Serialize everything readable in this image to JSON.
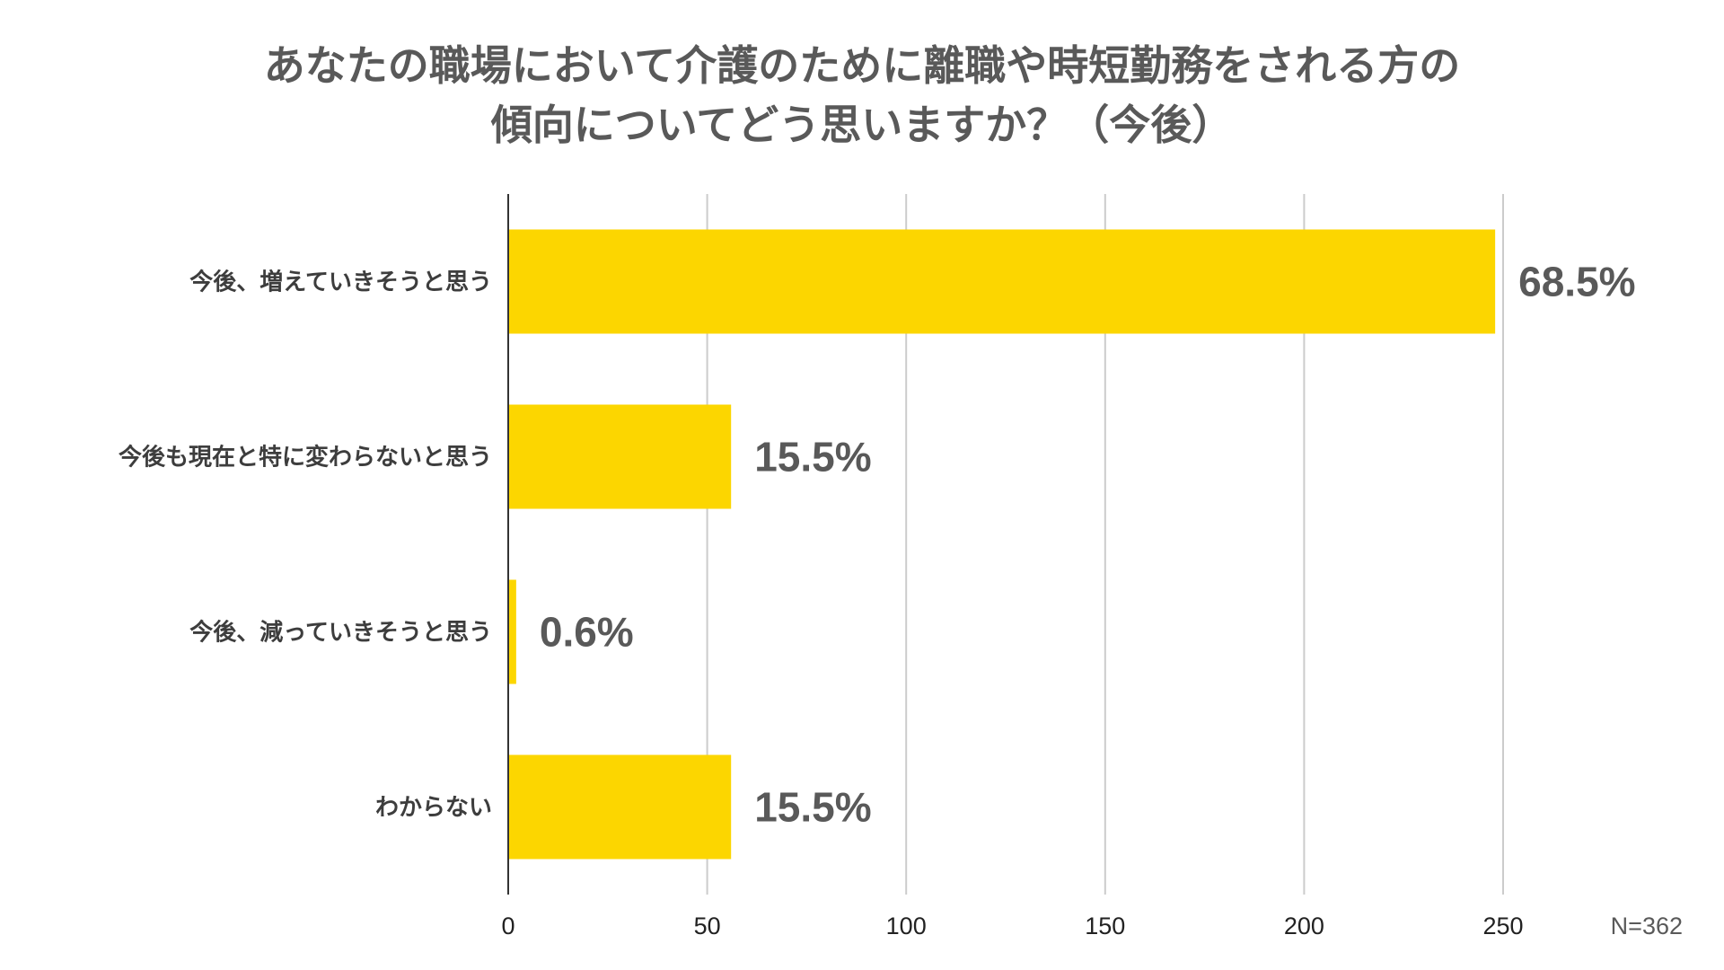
{
  "chart_data": {
    "type": "bar",
    "orientation": "horizontal",
    "title_lines": [
      "あなたの職場において介護のために離職や時短勤務をされる方の",
      "傾向についてどう思いますか？（今後）"
    ],
    "categories": [
      "今後、増えていきそうと思う",
      "今後も現在と特に変わらないと思う",
      "今後、減っていきそうと思う",
      "わからない"
    ],
    "values": [
      248,
      56,
      2,
      56
    ],
    "data_labels": [
      "68.5%",
      "15.5%",
      "0.6%",
      "15.5%"
    ],
    "x_ticks": [
      "0",
      "50",
      "100",
      "150",
      "200",
      "250"
    ],
    "xlim": [
      0,
      250
    ],
    "grid": true,
    "bar_color": "#FCD600",
    "note": "N=362"
  }
}
